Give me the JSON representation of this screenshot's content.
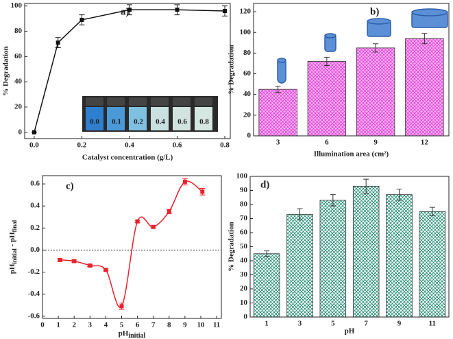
{
  "chart_data": [
    {
      "type": "line",
      "panel_label": "a)",
      "x_label": "Catalyst concentration (g/L)",
      "y_label": "% Degradation",
      "x": [
        0,
        0.1,
        0.2,
        0.4,
        0.6,
        0.8
      ],
      "values": [
        0,
        71,
        89,
        97,
        97,
        96
      ],
      "errors": [
        0,
        4,
        4,
        4,
        4,
        4
      ],
      "color": "#111111",
      "xlim": [
        -0.04,
        0.823
      ],
      "xticks": [
        {
          "value": 0,
          "label": "0.0"
        },
        {
          "value": 0.2,
          "label": "0.2"
        },
        {
          "value": 0.4,
          "label": "0.4"
        },
        {
          "value": 0.6,
          "label": "0.6"
        },
        {
          "value": 0.8,
          "label": "0.8"
        }
      ],
      "ylim": [
        -5,
        102
      ],
      "yticks": [
        0,
        20,
        40,
        60,
        80,
        100
      ],
      "inset_labels": [
        "0.0",
        "0.1",
        "0.2",
        "0.4",
        "0.6",
        "0.8"
      ]
    },
    {
      "type": "bar",
      "panel_label": "b)",
      "x_label": "Illumination area (cm²)",
      "y_label": "% Degradation",
      "categories": [
        "3",
        "6",
        "9",
        "12"
      ],
      "values": [
        45,
        72,
        85,
        94
      ],
      "errors": [
        3,
        4,
        4,
        5
      ],
      "color": "#f7b5f1",
      "hatch_color": "#e03ad8",
      "ylim": [
        0,
        128
      ],
      "yticks": [
        0,
        20,
        40,
        60,
        80,
        100,
        120
      ]
    },
    {
      "type": "line",
      "smooth": true,
      "panel_label": "c)",
      "x_label": {
        "main": "pH",
        "sub": "initial"
      },
      "y_label": {
        "main1": "pH",
        "sub1": "initial",
        "main2": " - pH",
        "sub2": "final"
      },
      "x": [
        1.1,
        2,
        3,
        4,
        5,
        6,
        7,
        8,
        9,
        10.1
      ],
      "values": [
        -0.09,
        -0.1,
        -0.14,
        -0.18,
        -0.51,
        0.26,
        0.21,
        0.35,
        0.62,
        0.53
      ],
      "errors": [
        0.01,
        0.01,
        0.01,
        0.01,
        0.03,
        0.01,
        0.01,
        0.02,
        0.03,
        0.03
      ],
      "color": "#e8202a",
      "reference_line": 0,
      "xlim": [
        0,
        11.3
      ],
      "xticks": [
        0,
        1,
        2,
        3,
        4,
        5,
        6,
        7,
        8,
        9,
        10,
        11
      ],
      "ylim": [
        -0.62,
        0.675
      ],
      "yticks": [
        -0.6,
        -0.4,
        -0.2,
        {
          "value": 0,
          "label": "0.0"
        },
        0.2,
        0.4,
        0.6
      ]
    },
    {
      "type": "bar",
      "panel_label": "d)",
      "x_label": "pH",
      "y_label": "% Degradation",
      "categories": [
        "1",
        "3",
        "5",
        "7",
        "9",
        "11"
      ],
      "values": [
        45,
        73,
        83,
        93,
        87,
        75
      ],
      "errors": [
        2,
        4,
        4,
        5,
        4,
        3
      ],
      "color": "#ffffff",
      "hatch_color": "#13876a",
      "ylim": [
        0,
        100
      ],
      "yticks": [
        0,
        10,
        20,
        30,
        40,
        50,
        60,
        70,
        80,
        90,
        100
      ]
    }
  ]
}
